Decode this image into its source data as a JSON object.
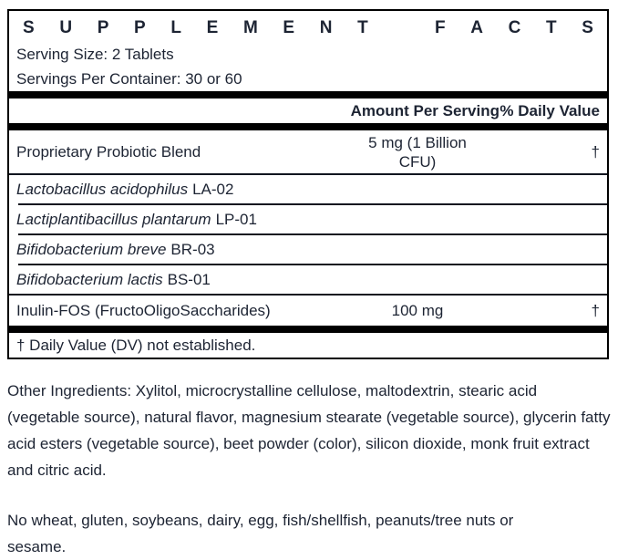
{
  "colors": {
    "text": "#1d2433",
    "bar": "#000000",
    "hairline": "#10151f"
  },
  "facts": {
    "title": "SUPPLEMENT FACTS",
    "serving_size": "Serving Size: 2 Tablets",
    "servings_per_container": "Servings Per Container: 30 or 60",
    "headers": {
      "amount": "Amount Per Serving",
      "daily_value": "% Daily Value"
    },
    "blend_row": {
      "name": "Proprietary Probiotic Blend",
      "amount": "5 mg (1 Billion CFU)",
      "daily_value": "†"
    },
    "species_rows": [
      {
        "species": "Lactobacillus acidophilus",
        "strain": "LA-02"
      },
      {
        "species": "Lactiplantibacillus plantarum",
        "strain": "LP-01"
      },
      {
        "species": "Bifidobacterium breve",
        "strain": "BR-03"
      },
      {
        "species": "Bifidobacterium lactis",
        "strain": "BS-01"
      }
    ],
    "inulin_row": {
      "name": "Inulin-FOS (FructoOligoSaccharides)",
      "amount": "100 mg",
      "daily_value": "†"
    },
    "footnote": "† Daily Value (DV) not established."
  },
  "other_ingredients": "Other Ingredients: Xylitol, microcrystalline cellulose, maltodextrin, stearic acid (vegetable source), natural flavor, magnesium stearate (vegetable source), glycerin fatty acid esters (vegetable source), beet powder (color), silicon dioxide, monk fruit extract and citric acid.",
  "allergen_statement": "No wheat, gluten, soybeans, dairy, egg, fish/shellfish, peanuts/tree nuts or sesame."
}
